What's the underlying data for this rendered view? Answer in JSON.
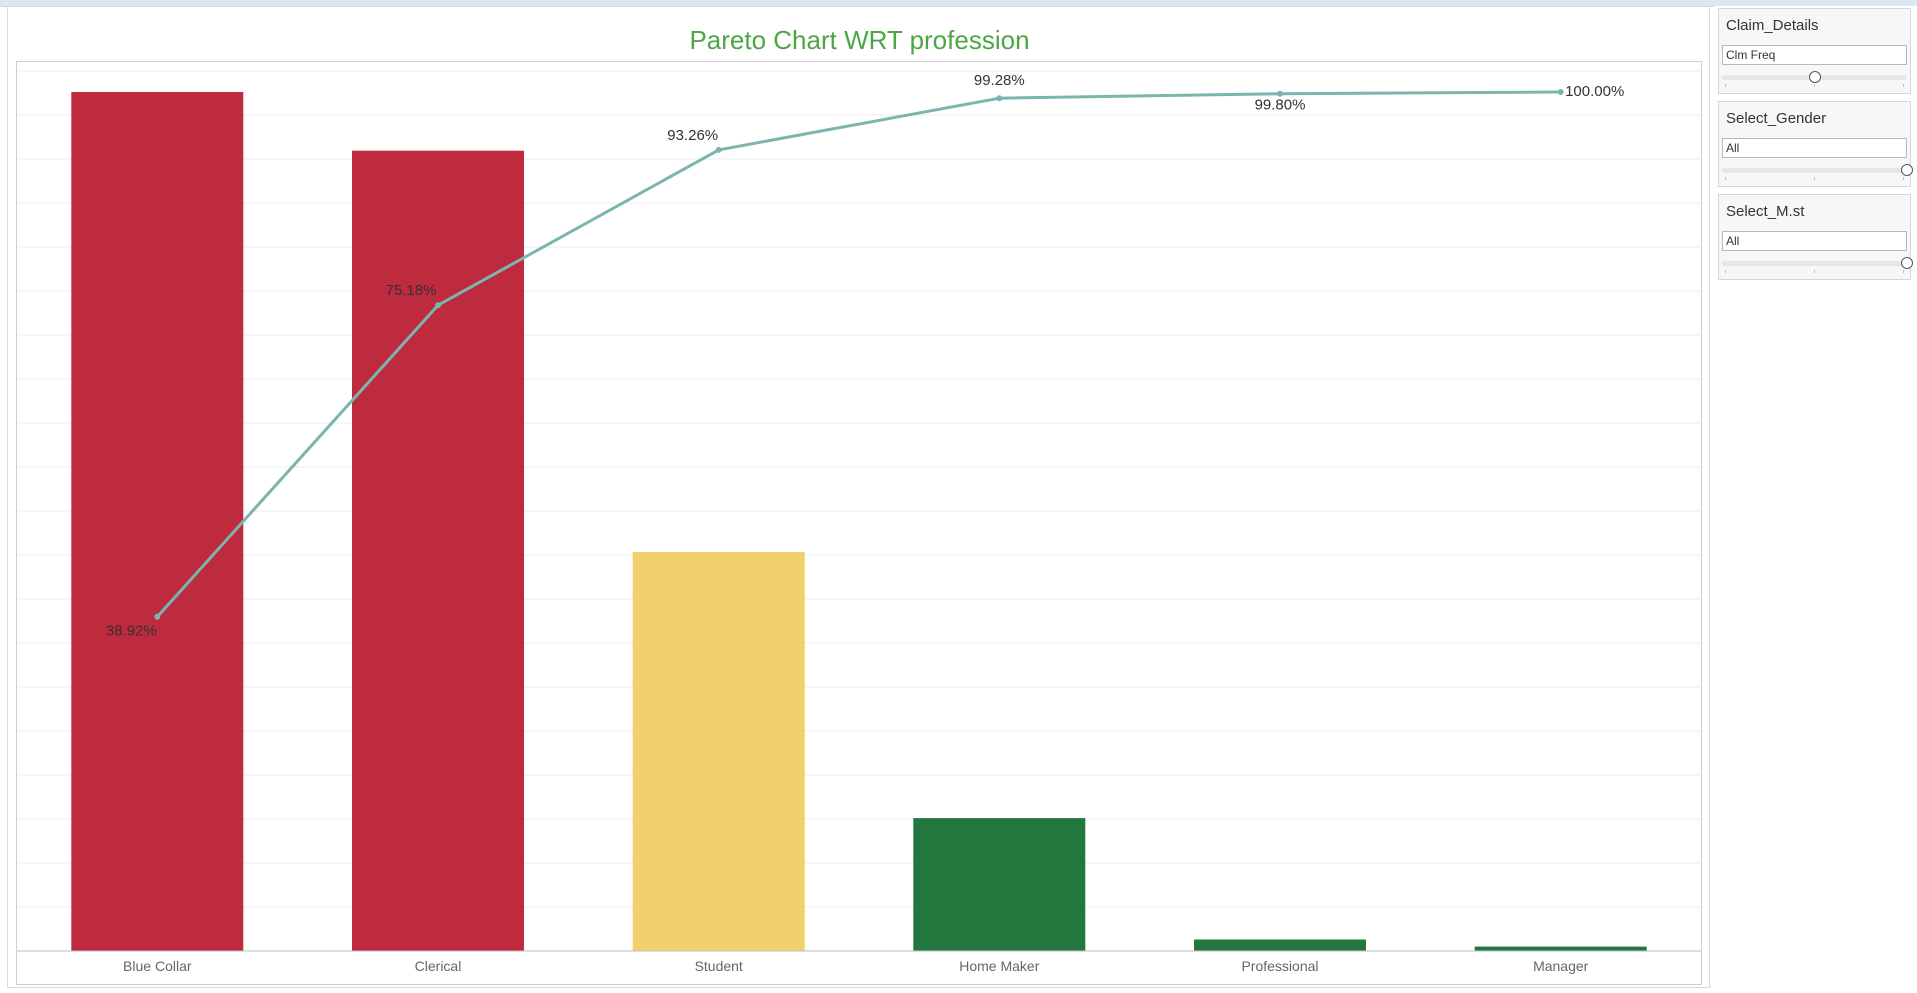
{
  "chart_data": {
    "type": "bar",
    "title": "Pareto Chart WRT profession",
    "categories": [
      "Blue Collar",
      "Clerical",
      "Student",
      "Home Maker",
      "Professional",
      "Manager"
    ],
    "values": [
      38.92,
      36.26,
      18.08,
      6.02,
      0.52,
      0.2
    ],
    "value_unit": "share of total (%)",
    "bar_colors": [
      "#be2a3e",
      "#be2a3e",
      "#f2d06b",
      "#22773f",
      "#22773f",
      "#22773f"
    ],
    "cumulative": {
      "values": [
        38.92,
        75.18,
        93.26,
        99.28,
        99.8,
        100.0
      ],
      "labels": [
        "38.92%",
        "75.18%",
        "93.26%",
        "99.28%",
        "99.80%",
        "100.00%"
      ],
      "color": "#7ab5ae"
    },
    "xlabel": "",
    "ylabel": "",
    "ylim": [
      0,
      100
    ],
    "grid": true,
    "legend": "none"
  },
  "filters": [
    {
      "title": "Claim_Details",
      "value": "Clm Freq",
      "position": 0.5
    },
    {
      "title": "Select_Gender",
      "value": "All",
      "position": 1.0
    },
    {
      "title": "Select_M.st",
      "value": "All",
      "position": 1.0
    }
  ]
}
